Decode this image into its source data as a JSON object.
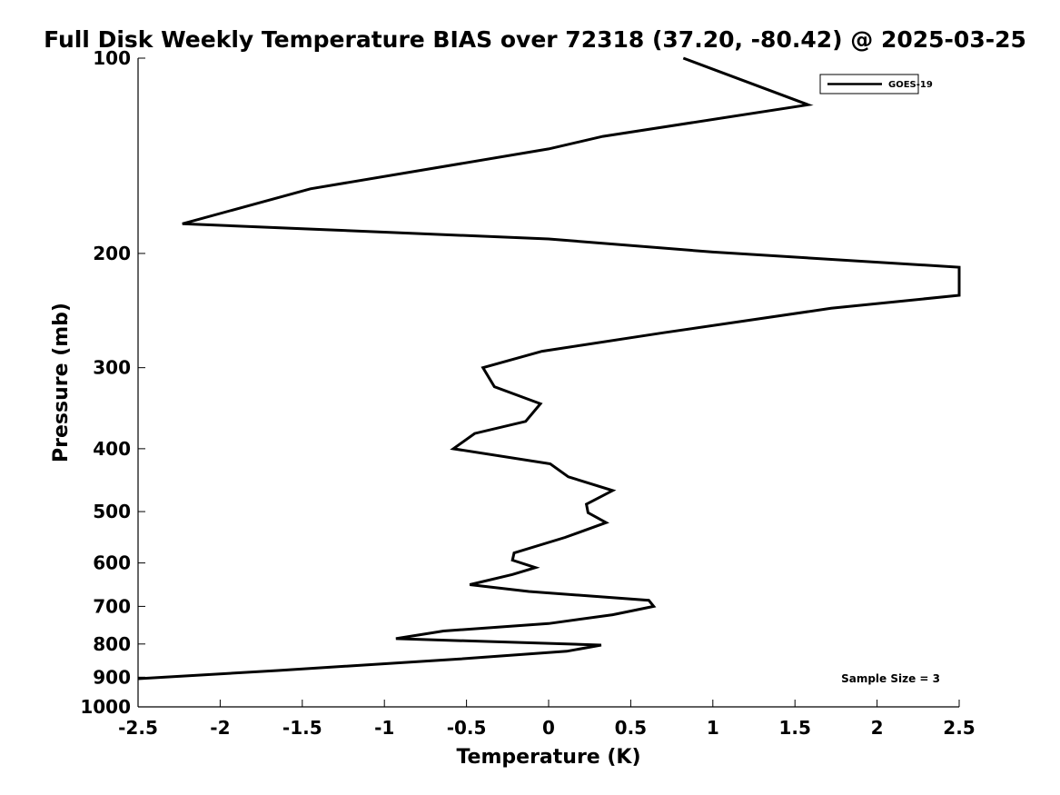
{
  "chart_data": {
    "type": "line",
    "title": "Full Disk Weekly Temperature BIAS over 72318 (37.20, -80.42) @ 2025-03-25",
    "xlabel": "Temperature (K)",
    "ylabel": "Pressure (mb)",
    "xlim": [
      -2.5,
      2.5
    ],
    "ylim": [
      100,
      1000
    ],
    "y_scale": "log",
    "y_reversed": true,
    "grid": false,
    "legend_position": "top-right",
    "x_ticks": [
      "-2.5",
      "-2",
      "-1.5",
      "-1",
      "-0.5",
      "0",
      "0.5",
      "1",
      "1.5",
      "2",
      "2.5"
    ],
    "y_ticks": [
      "100",
      "200",
      "300",
      "400",
      "500",
      "600",
      "700",
      "800",
      "900",
      "1000"
    ],
    "series": [
      {
        "name": "GOES-19",
        "color": "#000000",
        "points": [
          {
            "x": 0.82,
            "y": 100
          },
          {
            "x": 1.58,
            "y": 118
          },
          {
            "x": 0.33,
            "y": 132
          },
          {
            "x": 0.0,
            "y": 138
          },
          {
            "x": -1.45,
            "y": 159
          },
          {
            "x": -2.23,
            "y": 180
          },
          {
            "x": 0.0,
            "y": 190
          },
          {
            "x": 1.0,
            "y": 199
          },
          {
            "x": 2.5,
            "y": 210
          },
          {
            "x": 2.5,
            "y": 232
          },
          {
            "x": 1.72,
            "y": 243
          },
          {
            "x": 0.7,
            "y": 265
          },
          {
            "x": -0.04,
            "y": 283
          },
          {
            "x": -0.4,
            "y": 300
          },
          {
            "x": -0.33,
            "y": 321
          },
          {
            "x": -0.05,
            "y": 341
          },
          {
            "x": -0.14,
            "y": 363
          },
          {
            "x": -0.45,
            "y": 379
          },
          {
            "x": -0.58,
            "y": 400
          },
          {
            "x": 0.01,
            "y": 422
          },
          {
            "x": 0.12,
            "y": 442
          },
          {
            "x": 0.39,
            "y": 464
          },
          {
            "x": 0.23,
            "y": 487
          },
          {
            "x": 0.24,
            "y": 502
          },
          {
            "x": 0.35,
            "y": 520
          },
          {
            "x": 0.1,
            "y": 548
          },
          {
            "x": -0.21,
            "y": 579
          },
          {
            "x": -0.22,
            "y": 594
          },
          {
            "x": -0.08,
            "y": 610
          },
          {
            "x": -0.22,
            "y": 625
          },
          {
            "x": -0.48,
            "y": 648
          },
          {
            "x": -0.12,
            "y": 664
          },
          {
            "x": 0.61,
            "y": 685
          },
          {
            "x": 0.64,
            "y": 700
          },
          {
            "x": 0.39,
            "y": 721
          },
          {
            "x": 0.0,
            "y": 744
          },
          {
            "x": -0.64,
            "y": 764
          },
          {
            "x": -0.93,
            "y": 785
          },
          {
            "x": 0.32,
            "y": 803
          },
          {
            "x": 0.11,
            "y": 821
          },
          {
            "x": -0.55,
            "y": 844
          },
          {
            "x": -1.65,
            "y": 879
          },
          {
            "x": -2.5,
            "y": 905
          }
        ]
      }
    ],
    "annotation": "Sample Size = 3"
  }
}
